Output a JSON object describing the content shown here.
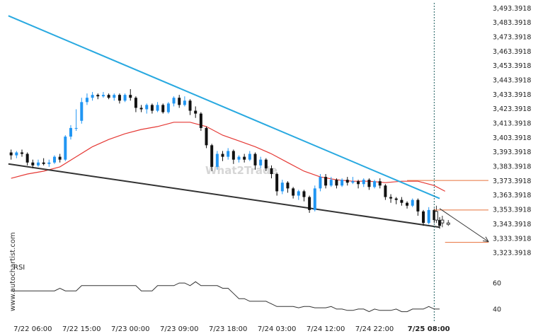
{
  "watermark": "What2Trade",
  "site_label": "www.autochartist.com",
  "chart_data": {
    "type": "candlestick",
    "y_ticks": [
      "3,493.3918",
      "3,483.3918",
      "3,473.3918",
      "3,463.3918",
      "3,453.3918",
      "3,443.3918",
      "3,433.3918",
      "3,423.3918",
      "3,413.3918",
      "3,403.3918",
      "3,393.3918",
      "3,383.3918",
      "3,373.3918",
      "3,363.3918",
      "3,353.3918",
      "3,343.3918",
      "3,333.3918",
      "3,323.3918"
    ],
    "y_tick_values": [
      3493.3918,
      3483.3918,
      3473.3918,
      3463.3918,
      3453.3918,
      3443.3918,
      3433.3918,
      3423.3918,
      3413.3918,
      3403.3918,
      3393.3918,
      3383.3918,
      3373.3918,
      3363.3918,
      3353.3918,
      3343.3918,
      3333.3918,
      3323.3918
    ],
    "ylim": [
      3320,
      3496
    ],
    "x_ticks": [
      "7/22 06:00",
      "7/22 15:00",
      "7/23 00:00",
      "7/23 09:00",
      "7/23 18:00",
      "7/24 03:00",
      "7/24 12:00",
      "7/24 22:00",
      "7/25 08:00"
    ],
    "x_tick_index": [
      4,
      13,
      22,
      31,
      40,
      49,
      58,
      67,
      77
    ],
    "x_range": [
      -1,
      88
    ],
    "current_index": 78,
    "candles": [
      [
        3393,
        3391,
        3395,
        3388
      ],
      [
        3391,
        3393,
        3394,
        3389
      ],
      [
        3393,
        3392,
        3395,
        3390
      ],
      [
        3392,
        3386,
        3393,
        3384
      ],
      [
        3386,
        3384,
        3388,
        3382
      ],
      [
        3384,
        3386,
        3388,
        3383
      ],
      [
        3386,
        3385,
        3389,
        3384
      ],
      [
        3385,
        3386,
        3388,
        3383
      ],
      [
        3386,
        3390,
        3391,
        3385
      ],
      [
        3390,
        3388,
        3392,
        3386
      ],
      [
        3388,
        3404,
        3405,
        3387
      ],
      [
        3404,
        3410,
        3412,
        3402
      ],
      [
        3410,
        3410,
        3423,
        3408
      ],
      [
        3415,
        3428,
        3431,
        3413
      ],
      [
        3428,
        3431,
        3434,
        3426
      ],
      [
        3431,
        3433,
        3435,
        3429
      ],
      [
        3433,
        3432,
        3434,
        3430
      ],
      [
        3432,
        3433,
        3435,
        3431
      ],
      [
        3433,
        3431,
        3434,
        3430
      ],
      [
        3431,
        3433,
        3434,
        3429
      ],
      [
        3433,
        3429,
        3434,
        3427
      ],
      [
        3429,
        3433,
        3434,
        3428
      ],
      [
        3433,
        3431,
        3437,
        3429
      ],
      [
        3431,
        3424,
        3432,
        3421
      ],
      [
        3424,
        3423,
        3426,
        3421
      ],
      [
        3423,
        3426,
        3427,
        3420
      ],
      [
        3426,
        3422,
        3427,
        3420
      ],
      [
        3422,
        3426,
        3428,
        3421
      ],
      [
        3426,
        3421,
        3427,
        3420
      ],
      [
        3421,
        3427,
        3428,
        3420
      ],
      [
        3427,
        3431,
        3432,
        3425
      ],
      [
        3431,
        3426,
        3433,
        3424
      ],
      [
        3426,
        3429,
        3432,
        3425
      ],
      [
        3429,
        3422,
        3430,
        3419
      ],
      [
        3422,
        3420,
        3425,
        3417
      ],
      [
        3420,
        3410,
        3421,
        3408
      ],
      [
        3410,
        3398,
        3411,
        3396
      ],
      [
        3398,
        3383,
        3399,
        3380
      ],
      [
        3383,
        3392,
        3394,
        3381
      ],
      [
        3392,
        3390,
        3394,
        3387
      ],
      [
        3390,
        3394,
        3396,
        3388
      ],
      [
        3394,
        3388,
        3395,
        3385
      ],
      [
        3388,
        3390,
        3391,
        3386
      ],
      [
        3390,
        3388,
        3392,
        3386
      ],
      [
        3388,
        3392,
        3394,
        3387
      ],
      [
        3392,
        3384,
        3393,
        3381
      ],
      [
        3384,
        3388,
        3390,
        3382
      ],
      [
        3388,
        3382,
        3389,
        3380
      ],
      [
        3382,
        3378,
        3384,
        3375
      ],
      [
        3378,
        3366,
        3379,
        3363
      ],
      [
        3366,
        3372,
        3374,
        3364
      ],
      [
        3372,
        3368,
        3373,
        3365
      ],
      [
        3368,
        3363,
        3369,
        3361
      ],
      [
        3363,
        3366,
        3367,
        3360
      ],
      [
        3366,
        3362,
        3367,
        3359
      ],
      [
        3362,
        3353,
        3363,
        3351
      ],
      [
        3353,
        3368,
        3370,
        3352
      ],
      [
        3368,
        3376,
        3378,
        3366
      ],
      [
        3376,
        3370,
        3378,
        3368
      ],
      [
        3370,
        3374,
        3376,
        3369
      ],
      [
        3374,
        3370,
        3375,
        3368
      ],
      [
        3370,
        3374,
        3375,
        3369
      ],
      [
        3374,
        3372,
        3376,
        3370
      ],
      [
        3372,
        3373,
        3376,
        3371
      ],
      [
        3373,
        3371,
        3374,
        3368
      ],
      [
        3371,
        3374,
        3375,
        3369
      ],
      [
        3374,
        3369,
        3375,
        3367
      ],
      [
        3369,
        3373,
        3374,
        3368
      ],
      [
        3373,
        3370,
        3375,
        3368
      ],
      [
        3370,
        3362,
        3371,
        3360
      ],
      [
        3362,
        3361,
        3364,
        3358
      ],
      [
        3361,
        3360,
        3362,
        3357
      ],
      [
        3360,
        3358,
        3362,
        3356
      ],
      [
        3358,
        3356,
        3359,
        3354
      ],
      [
        3356,
        3360,
        3361,
        3355
      ],
      [
        3360,
        3352,
        3361,
        3349
      ],
      [
        3352,
        3344,
        3353,
        3342
      ],
      [
        3344,
        3353,
        3355,
        3343
      ],
      [
        3353,
        3346,
        3354,
        3344
      ],
      [
        3346,
        3342,
        3348,
        3340
      ]
    ],
    "moving_average": [
      [
        0,
        3375
      ],
      [
        3,
        3378
      ],
      [
        6,
        3380
      ],
      [
        9,
        3383
      ],
      [
        12,
        3390
      ],
      [
        15,
        3397
      ],
      [
        18,
        3402
      ],
      [
        21,
        3406
      ],
      [
        24,
        3409
      ],
      [
        27,
        3411
      ],
      [
        30,
        3414
      ],
      [
        33,
        3414
      ],
      [
        36,
        3411
      ],
      [
        39,
        3405
      ],
      [
        42,
        3401
      ],
      [
        45,
        3397
      ],
      [
        48,
        3392
      ],
      [
        51,
        3386
      ],
      [
        54,
        3380
      ],
      [
        57,
        3376
      ],
      [
        60,
        3374
      ],
      [
        63,
        3373
      ],
      [
        66,
        3373
      ],
      [
        69,
        3372
      ],
      [
        72,
        3373
      ],
      [
        75,
        3373
      ],
      [
        78,
        3370
      ],
      [
        80,
        3366
      ]
    ],
    "resistance_line": [
      [
        -0.5,
        3488
      ],
      [
        79,
        3361
      ]
    ],
    "support_line": [
      [
        -0.5,
        3385
      ],
      [
        79,
        3341
      ]
    ],
    "projection_arrow": [
      [
        79,
        3354
      ],
      [
        88,
        3331
      ]
    ],
    "horizontal_levels": [
      {
        "value": 3373.5,
        "x_start": 73,
        "x_end": 88
      },
      {
        "value": 3353,
        "x_start": 78,
        "x_end": 88
      },
      {
        "value": 3330.5,
        "x_start": 80,
        "x_end": 88
      }
    ],
    "rsi": {
      "label": "RSI",
      "ticks": [
        60,
        40
      ],
      "ylim": [
        34,
        72
      ],
      "values": [
        54,
        54,
        54,
        54,
        54,
        54,
        54,
        54,
        54,
        56,
        54,
        54,
        54,
        58,
        58,
        58,
        58,
        58,
        58,
        58,
        58,
        58,
        58,
        58,
        54,
        54,
        54,
        58,
        58,
        58,
        58,
        60,
        60,
        58,
        61,
        58,
        58,
        58,
        58,
        56,
        56,
        52,
        48,
        48,
        46,
        46,
        46,
        46,
        44,
        42,
        42,
        42,
        42,
        41,
        42,
        42,
        41,
        41,
        41,
        42,
        40,
        40,
        39,
        39,
        40,
        40,
        38,
        40,
        39,
        39,
        39,
        40,
        38,
        38,
        40,
        40,
        40,
        42,
        40,
        40
      ]
    },
    "colors": {
      "bull": "#2196f3",
      "bear": "#111111",
      "moving_average": "#e53935",
      "resistance": "#29a9e0",
      "support": "#333333",
      "levels": "#e8703a",
      "projection": "#333333",
      "current_line": "#1f5f5f",
      "rsi": "#333333"
    }
  }
}
